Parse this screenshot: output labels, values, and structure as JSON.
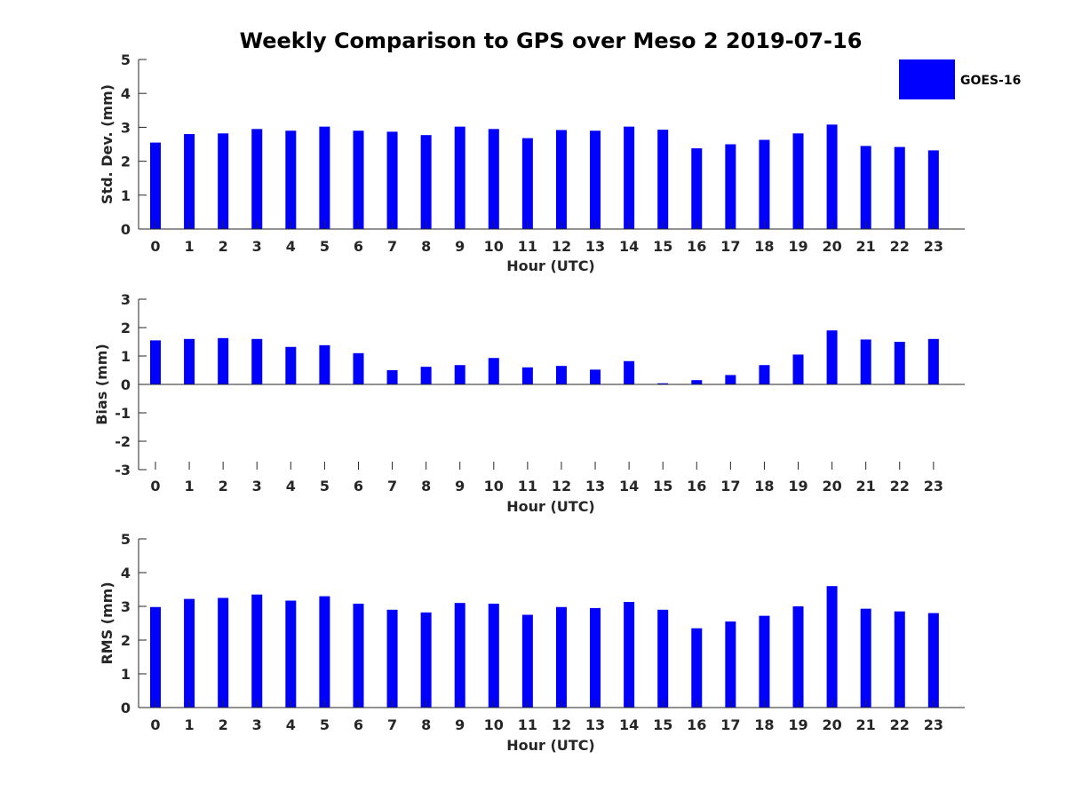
{
  "chart_data": {
    "title": "Weekly Comparison to GPS over Meso 2 2019-07-16",
    "series_color": "#0000ff",
    "axis_color": "#262626",
    "legend": {
      "label": "GOES-16",
      "placement": "top-right"
    },
    "categories": [
      "0",
      "1",
      "2",
      "3",
      "4",
      "5",
      "6",
      "7",
      "8",
      "9",
      "10",
      "11",
      "12",
      "13",
      "14",
      "15",
      "16",
      "17",
      "18",
      "19",
      "20",
      "21",
      "22",
      "23"
    ],
    "panels": [
      {
        "type": "bar",
        "xlabel": "Hour (UTC)",
        "ylabel": "Std. Dev. (mm)",
        "ylim": [
          0,
          5
        ],
        "yticks": [
          0,
          1,
          2,
          3,
          4,
          5
        ],
        "series": [
          {
            "name": "GOES-16",
            "values": [
              2.55,
              2.8,
              2.82,
              2.95,
              2.9,
              3.02,
              2.9,
              2.87,
              2.77,
              3.02,
              2.95,
              2.68,
              2.92,
              2.9,
              3.02,
              2.93,
              2.38,
              2.5,
              2.63,
              2.82,
              3.08,
              2.45,
              2.42,
              2.32
            ]
          }
        ]
      },
      {
        "type": "bar",
        "xlabel": "Hour (UTC)",
        "ylabel": "Bias (mm)",
        "ylim": [
          -3,
          3
        ],
        "yticks": [
          -3,
          -2,
          -1,
          0,
          1,
          2,
          3
        ],
        "series": [
          {
            "name": "GOES-16",
            "values": [
              1.55,
              1.6,
              1.63,
              1.6,
              1.32,
              1.38,
              1.1,
              0.5,
              0.62,
              0.68,
              0.93,
              0.6,
              0.65,
              0.52,
              0.82,
              0.04,
              0.15,
              0.33,
              0.68,
              1.05,
              1.9,
              1.58,
              1.5,
              1.6
            ]
          }
        ]
      },
      {
        "type": "bar",
        "xlabel": "Hour (UTC)",
        "ylabel": "RMS (mm)",
        "ylim": [
          0,
          5
        ],
        "yticks": [
          0,
          1,
          2,
          3,
          4,
          5
        ],
        "series": [
          {
            "name": "GOES-16",
            "values": [
              2.98,
              3.22,
              3.25,
              3.35,
              3.17,
              3.3,
              3.08,
              2.9,
              2.82,
              3.1,
              3.08,
              2.75,
              2.98,
              2.95,
              3.13,
              2.9,
              2.35,
              2.55,
              2.72,
              3.0,
              3.6,
              2.93,
              2.85,
              2.8
            ]
          }
        ]
      }
    ]
  }
}
